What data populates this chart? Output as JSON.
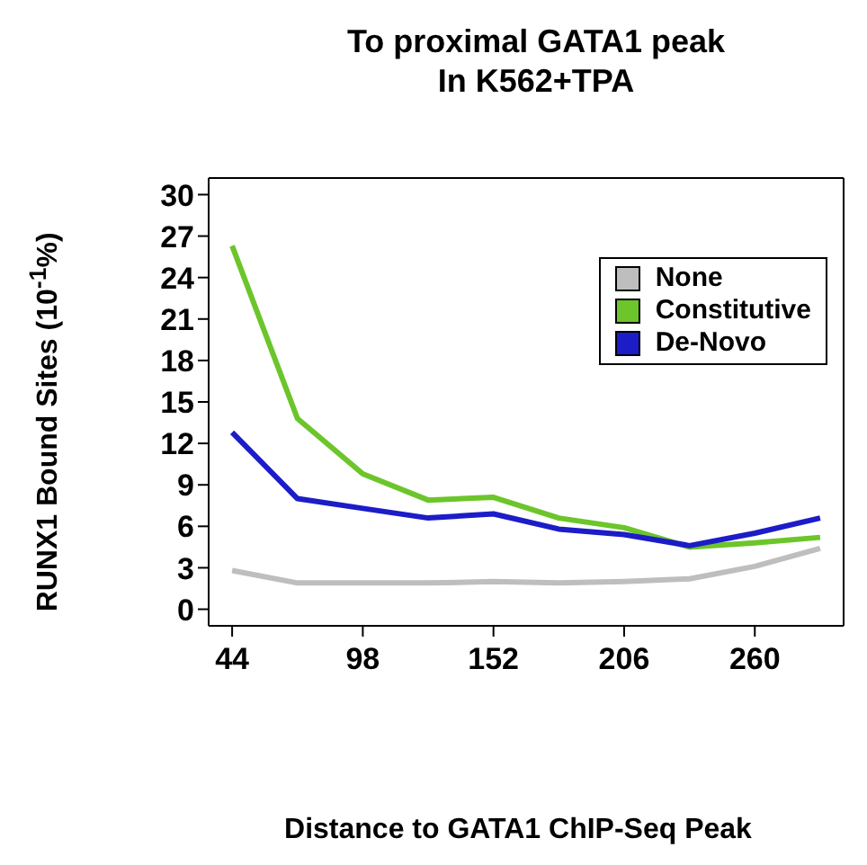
{
  "chart_data": {
    "type": "line",
    "title": "To proximal GATA1 peak\nIn K562+TPA",
    "xlabel": "Distance to GATA1 ChIP-Seq Peak",
    "ylabel": "RUNX1 Bound Sites (10$^{-1}$%)",
    "x": [
      44,
      71,
      98,
      125,
      152,
      179,
      206,
      233,
      260,
      287
    ],
    "series": [
      {
        "name": "None",
        "color": "#bebebe",
        "values": [
          2.8,
          1.9,
          1.9,
          1.9,
          2.0,
          1.9,
          2.0,
          2.2,
          3.1,
          4.4
        ]
      },
      {
        "name": "Constitutive",
        "color": "#6cc52a",
        "values": [
          26.3,
          13.8,
          9.8,
          7.9,
          8.1,
          6.6,
          5.9,
          4.5,
          4.8,
          5.2
        ]
      },
      {
        "name": "De-Novo",
        "color": "#1c1cc8",
        "values": [
          12.8,
          8.0,
          7.3,
          6.6,
          6.9,
          5.8,
          5.4,
          4.6,
          5.5,
          6.6
        ]
      }
    ],
    "xlim": [
      34.3,
      296.7
    ],
    "xticks": [
      44,
      98,
      152,
      206,
      260
    ],
    "ylim": [
      -1.2,
      31.2
    ],
    "yticks": [
      0,
      3,
      6,
      9,
      12,
      15,
      18,
      21,
      24,
      27,
      30
    ],
    "legend": "top right",
    "grid": false,
    "marker": "none",
    "line_style": "solid"
  }
}
